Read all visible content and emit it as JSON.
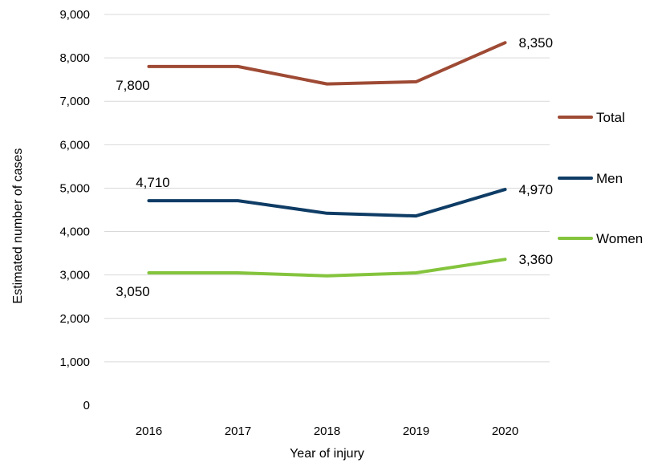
{
  "chart_data": {
    "type": "line",
    "title": "",
    "xlabel": "Year of injury",
    "ylabel": "Estimated number of cases",
    "categories": [
      "2016",
      "2017",
      "2018",
      "2019",
      "2020"
    ],
    "ylim": [
      0,
      9000
    ],
    "yticks": [
      "0",
      "1,000",
      "2,000",
      "3,000",
      "4,000",
      "5,000",
      "6,000",
      "7,000",
      "8,000",
      "9,000"
    ],
    "grid": true,
    "legend_position": "right",
    "series": [
      {
        "name": "Total",
        "color": "#9e4a34",
        "values": [
          7800,
          7800,
          7400,
          7450,
          8350
        ],
        "labels": [
          {
            "index": 0,
            "text": "7,800",
            "position": "below"
          },
          {
            "index": 4,
            "text": "8,350",
            "position": "right"
          }
        ]
      },
      {
        "name": "Men",
        "color": "#0e3c65",
        "values": [
          4710,
          4710,
          4420,
          4360,
          4970
        ],
        "labels": [
          {
            "index": 0,
            "text": "4,710",
            "position": "above"
          },
          {
            "index": 4,
            "text": "4,970",
            "position": "right"
          }
        ]
      },
      {
        "name": "Women",
        "color": "#84c43d",
        "values": [
          3050,
          3050,
          2980,
          3050,
          3360
        ],
        "labels": [
          {
            "index": 0,
            "text": "3,050",
            "position": "below"
          },
          {
            "index": 4,
            "text": "3,360",
            "position": "right"
          }
        ]
      }
    ]
  }
}
